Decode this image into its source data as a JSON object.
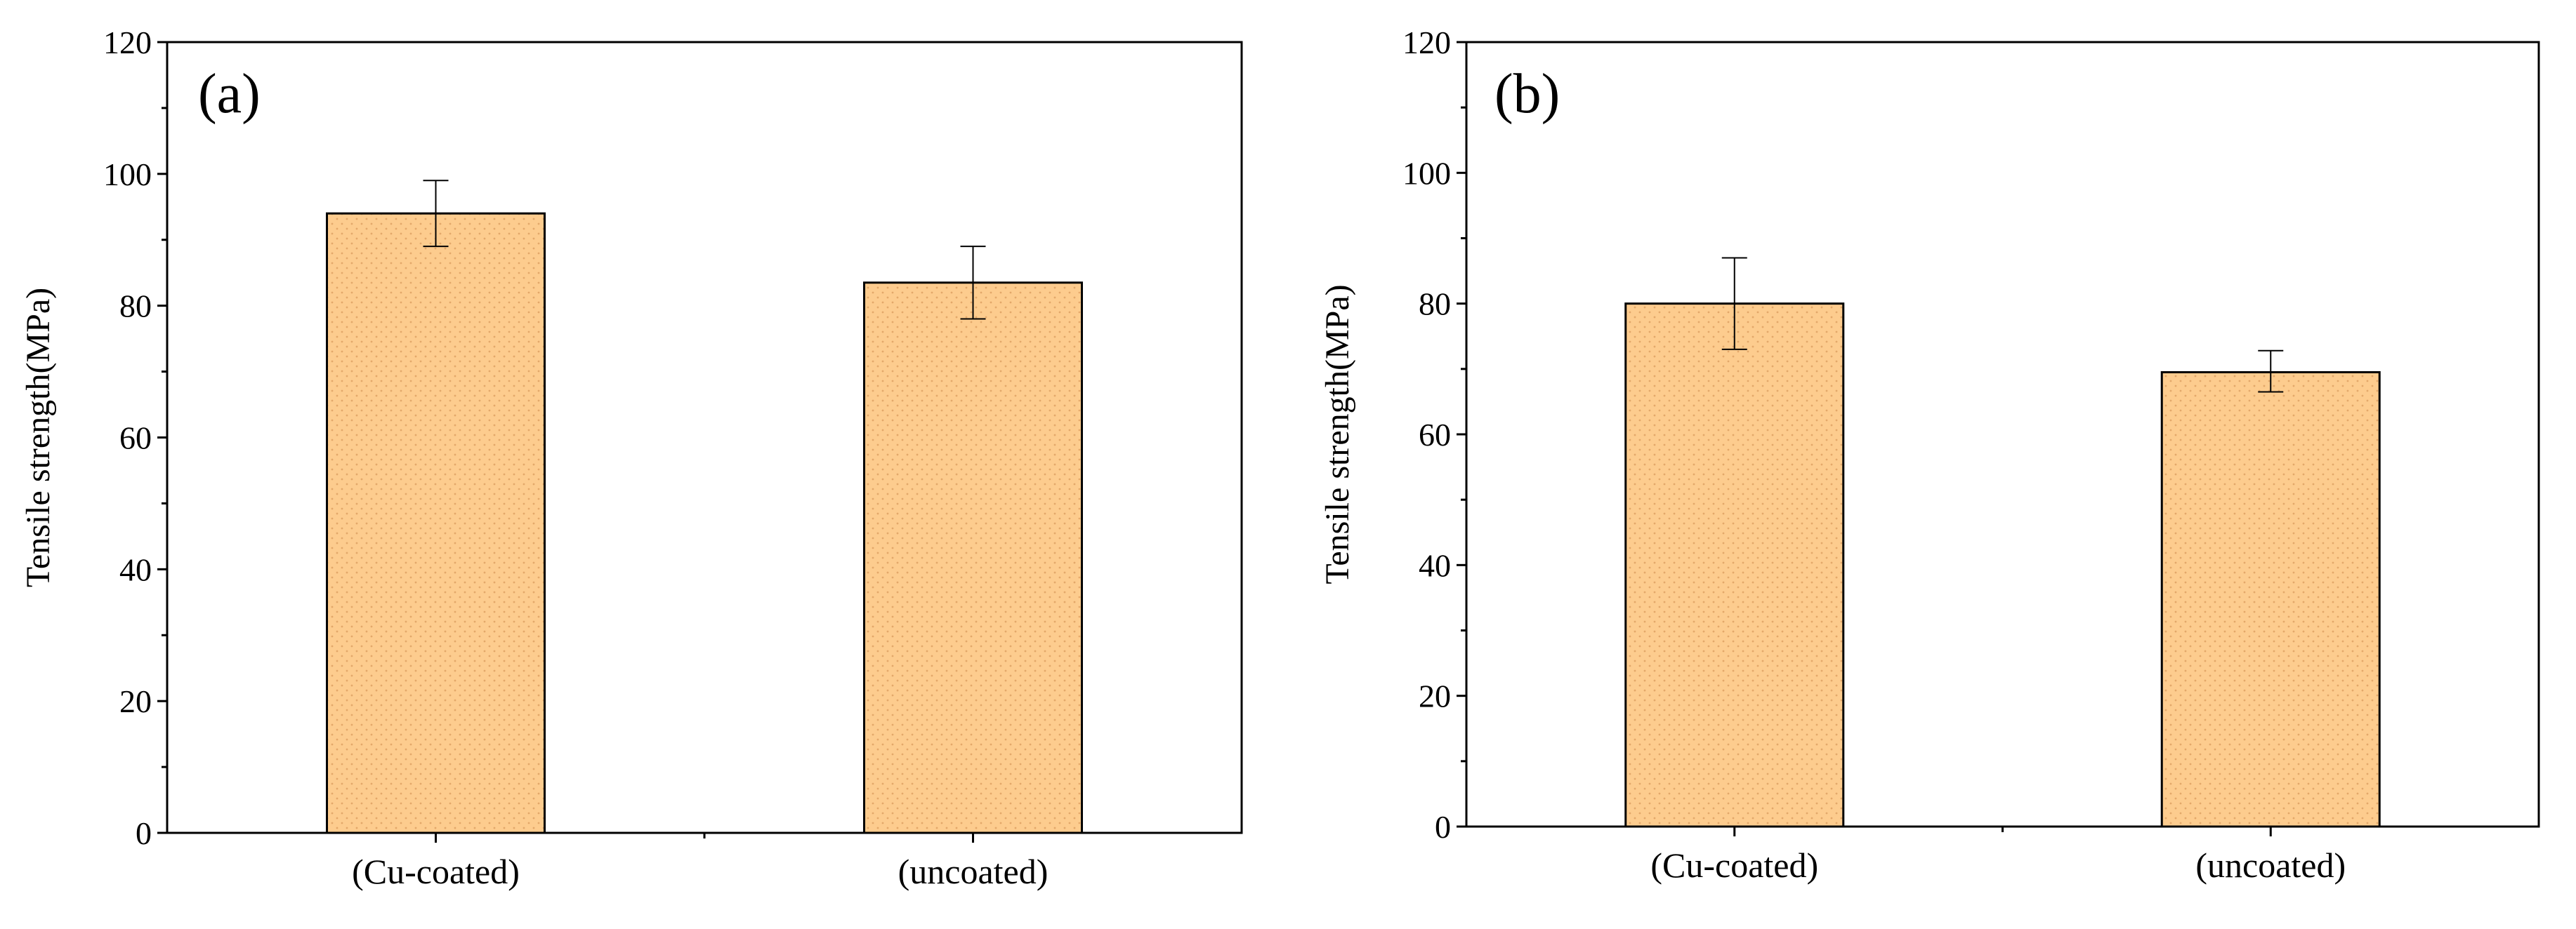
{
  "figure": {
    "bar_color": "#fdcc8e",
    "bar_dot_color": "#e3a86a",
    "axis_color": "#000000"
  },
  "chart_data": [
    {
      "type": "bar",
      "panel_label": "(a)",
      "categories": [
        "(Cu-coated)",
        "(uncoated)"
      ],
      "values": [
        94,
        83.5
      ],
      "error_low": [
        89,
        78
      ],
      "error_high": [
        99,
        89
      ],
      "title": "",
      "xlabel": "",
      "ylabel": "Tensile strength(MPa)",
      "ylim": [
        0,
        120
      ],
      "yticks": [
        "0",
        "20",
        "40",
        "60",
        "80",
        "100",
        "120"
      ],
      "grid": false,
      "legend": "none"
    },
    {
      "type": "bar",
      "panel_label": "(b)",
      "categories": [
        "(Cu-coated)",
        "(uncoated)"
      ],
      "values": [
        80,
        69.5
      ],
      "error_low": [
        73,
        66.5
      ],
      "error_high": [
        87,
        72.8
      ],
      "title": "",
      "xlabel": "",
      "ylabel": "Tensile strength(MPa)",
      "ylim": [
        0,
        120
      ],
      "yticks": [
        "0",
        "20",
        "40",
        "60",
        "80",
        "100",
        "120"
      ],
      "grid": false,
      "legend": "none"
    }
  ]
}
